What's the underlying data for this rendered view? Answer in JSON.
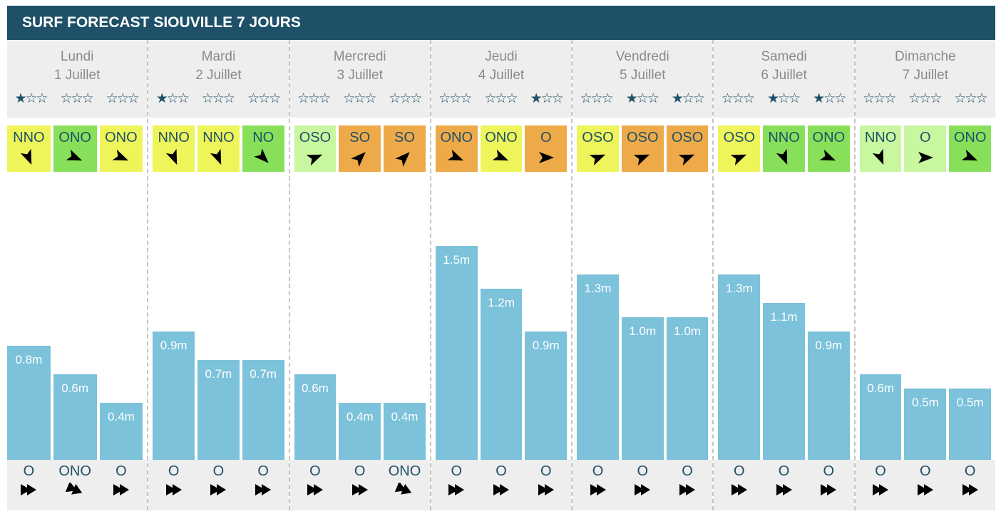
{
  "title": "SURF FORECAST SIOUVILLE 7 JOURS",
  "colors": {
    "yellow": "#eef55a",
    "green": "#88e05a",
    "lightgreen": "#c8f7a0",
    "orange": "#eeaa48",
    "bar": "#7bc2da",
    "header": "#1e5068"
  },
  "days": [
    {
      "name": "Lundi",
      "date": "1 Juillet",
      "stars": [
        1,
        0,
        0
      ],
      "wind": [
        {
          "dir": "NNO",
          "color": "yellow"
        },
        {
          "dir": "ONO",
          "color": "green"
        },
        {
          "dir": "ONO",
          "color": "yellow"
        }
      ],
      "waves": [
        "0.8m",
        "0.6m",
        "0.4m"
      ],
      "wave_values": [
        0.8,
        0.6,
        0.4
      ],
      "swell": [
        "O",
        "ONO",
        "O"
      ]
    },
    {
      "name": "Mardi",
      "date": "2 Juillet",
      "stars": [
        1,
        0,
        0
      ],
      "wind": [
        {
          "dir": "NNO",
          "color": "yellow"
        },
        {
          "dir": "NNO",
          "color": "yellow"
        },
        {
          "dir": "NO",
          "color": "green"
        }
      ],
      "waves": [
        "0.9m",
        "0.7m",
        "0.7m"
      ],
      "wave_values": [
        0.9,
        0.7,
        0.7
      ],
      "swell": [
        "O",
        "O",
        "O"
      ]
    },
    {
      "name": "Mercredi",
      "date": "3 Juillet",
      "stars": [
        0,
        0,
        0
      ],
      "wind": [
        {
          "dir": "OSO",
          "color": "lightgreen"
        },
        {
          "dir": "SO",
          "color": "orange"
        },
        {
          "dir": "SO",
          "color": "orange"
        }
      ],
      "waves": [
        "0.6m",
        "0.4m",
        "0.4m"
      ],
      "wave_values": [
        0.6,
        0.4,
        0.4
      ],
      "swell": [
        "O",
        "O",
        "ONO"
      ]
    },
    {
      "name": "Jeudi",
      "date": "4 Juillet",
      "stars": [
        0,
        0,
        1
      ],
      "wind": [
        {
          "dir": "ONO",
          "color": "orange"
        },
        {
          "dir": "ONO",
          "color": "yellow"
        },
        {
          "dir": "O",
          "color": "orange"
        }
      ],
      "waves": [
        "1.5m",
        "1.2m",
        "0.9m"
      ],
      "wave_values": [
        1.5,
        1.2,
        0.9
      ],
      "swell": [
        "O",
        "O",
        "O"
      ]
    },
    {
      "name": "Vendredi",
      "date": "5 Juillet",
      "stars": [
        0,
        1,
        1
      ],
      "wind": [
        {
          "dir": "OSO",
          "color": "yellow"
        },
        {
          "dir": "OSO",
          "color": "orange"
        },
        {
          "dir": "OSO",
          "color": "orange"
        }
      ],
      "waves": [
        "1.3m",
        "1.0m",
        "1.0m"
      ],
      "wave_values": [
        1.3,
        1.0,
        1.0
      ],
      "swell": [
        "O",
        "O",
        "O"
      ]
    },
    {
      "name": "Samedi",
      "date": "6 Juillet",
      "stars": [
        0,
        1,
        1
      ],
      "wind": [
        {
          "dir": "OSO",
          "color": "yellow"
        },
        {
          "dir": "NNO",
          "color": "green"
        },
        {
          "dir": "ONO",
          "color": "green"
        }
      ],
      "waves": [
        "1.3m",
        "1.1m",
        "0.9m"
      ],
      "wave_values": [
        1.3,
        1.1,
        0.9
      ],
      "swell": [
        "O",
        "O",
        "O"
      ]
    },
    {
      "name": "Dimanche",
      "date": "7 Juillet",
      "stars": [
        0,
        0,
        0
      ],
      "wind": [
        {
          "dir": "NNO",
          "color": "lightgreen"
        },
        {
          "dir": "O",
          "color": "lightgreen"
        },
        {
          "dir": "ONO",
          "color": "green"
        }
      ],
      "waves": [
        "0.6m",
        "0.5m",
        "0.5m"
      ],
      "wave_values": [
        0.6,
        0.5,
        0.5
      ],
      "swell": [
        "O",
        "O",
        "O"
      ]
    }
  ]
}
